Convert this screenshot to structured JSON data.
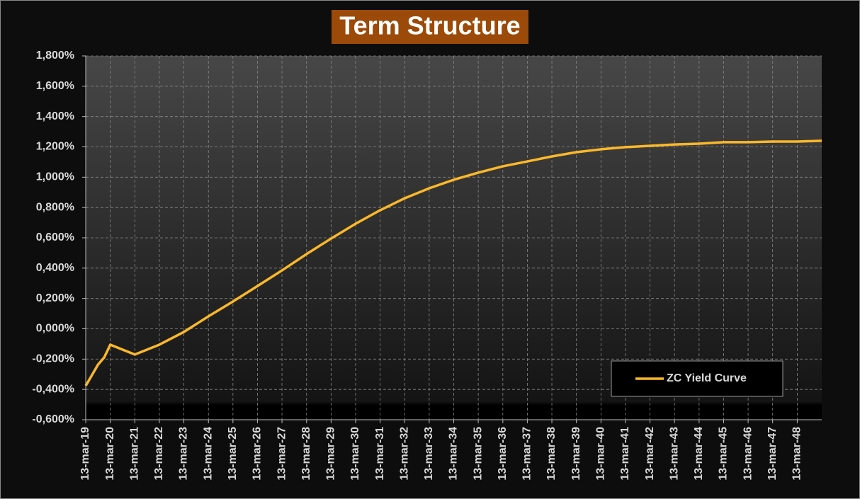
{
  "chart_data": {
    "type": "line",
    "title": "Term Structure",
    "x": [
      "2019-03-13",
      "2019-04-13",
      "2019-09-13",
      "2019-12-13",
      "2020-03-13",
      "2021-03-13",
      "2022-03-13",
      "2023-03-13",
      "2024-03-13",
      "2025-03-13",
      "2026-03-13",
      "2027-03-13",
      "2028-03-13",
      "2029-03-13",
      "2030-03-13",
      "2031-03-13",
      "2032-03-13",
      "2033-03-13",
      "2034-03-13",
      "2035-03-13",
      "2036-03-13",
      "2037-03-13",
      "2038-03-13",
      "2039-03-13",
      "2040-03-13",
      "2041-03-13",
      "2042-03-13",
      "2043-03-13",
      "2044-03-13",
      "2045-03-13",
      "2046-03-13",
      "2047-03-13",
      "2048-03-13",
      "2049-03-13"
    ],
    "series": [
      {
        "name": "ZC Yield Curve",
        "color": "#fbb829",
        "values": [
          -0.376,
          -0.353,
          -0.236,
          -0.189,
          -0.105,
          -0.17,
          -0.105,
          -0.021,
          0.082,
          0.18,
          0.282,
          0.385,
          0.493,
          0.595,
          0.693,
          0.782,
          0.861,
          0.927,
          0.983,
          1.03,
          1.072,
          1.104,
          1.137,
          1.165,
          1.184,
          1.198,
          1.207,
          1.216,
          1.221,
          1.231,
          1.231,
          1.235,
          1.235,
          1.24
        ]
      }
    ],
    "xlim": [
      "2019-03-13",
      "2049-03-13"
    ],
    "xticks": [
      {
        "value": "2019-03-13",
        "label": "13-mar-19"
      },
      {
        "value": "2020-03-13",
        "label": "13-mar-20"
      },
      {
        "value": "2021-03-13",
        "label": "13-mar-21"
      },
      {
        "value": "2022-03-13",
        "label": "13-mar-22"
      },
      {
        "value": "2023-03-13",
        "label": "13-mar-23"
      },
      {
        "value": "2024-03-13",
        "label": "13-mar-24"
      },
      {
        "value": "2025-03-13",
        "label": "13-mar-25"
      },
      {
        "value": "2026-03-13",
        "label": "13-mar-26"
      },
      {
        "value": "2027-03-13",
        "label": "13-mar-27"
      },
      {
        "value": "2028-03-13",
        "label": "13-mar-28"
      },
      {
        "value": "2029-03-13",
        "label": "13-mar-29"
      },
      {
        "value": "2030-03-13",
        "label": "13-mar-30"
      },
      {
        "value": "2031-03-13",
        "label": "13-mar-31"
      },
      {
        "value": "2032-03-13",
        "label": "13-mar-32"
      },
      {
        "value": "2033-03-13",
        "label": "13-mar-33"
      },
      {
        "value": "2034-03-13",
        "label": "13-mar-34"
      },
      {
        "value": "2035-03-13",
        "label": "13-mar-35"
      },
      {
        "value": "2036-03-13",
        "label": "13-mar-36"
      },
      {
        "value": "2037-03-13",
        "label": "13-mar-37"
      },
      {
        "value": "2038-03-13",
        "label": "13-mar-38"
      },
      {
        "value": "2039-03-13",
        "label": "13-mar-39"
      },
      {
        "value": "2040-03-13",
        "label": "13-mar-40"
      },
      {
        "value": "2041-03-13",
        "label": "13-mar-41"
      },
      {
        "value": "2042-03-13",
        "label": "13-mar-42"
      },
      {
        "value": "2043-03-13",
        "label": "13-mar-43"
      },
      {
        "value": "2044-03-13",
        "label": "13-mar-44"
      },
      {
        "value": "2045-03-13",
        "label": "13-mar-45"
      },
      {
        "value": "2046-03-13",
        "label": "13-mar-46"
      },
      {
        "value": "2047-03-13",
        "label": "13-mar-47"
      },
      {
        "value": "2048-03-13",
        "label": "13-mar-48"
      }
    ],
    "ylim": [
      -0.6,
      1.8
    ],
    "yticks": [
      {
        "value": -0.6,
        "label": "-0,600%"
      },
      {
        "value": -0.4,
        "label": "-0,400%"
      },
      {
        "value": -0.2,
        "label": "-0,200%"
      },
      {
        "value": 0,
        "label": "0,000%"
      },
      {
        "value": 0.2,
        "label": "0,200%"
      },
      {
        "value": 0.4,
        "label": "0,400%"
      },
      {
        "value": 0.6,
        "label": "0,600%"
      },
      {
        "value": 0.8,
        "label": "0,800%"
      },
      {
        "value": 1.0,
        "label": "1,000%"
      },
      {
        "value": 1.2,
        "label": "1,200%"
      },
      {
        "value": 1.4,
        "label": "1,400%"
      },
      {
        "value": 1.6,
        "label": "1,600%"
      },
      {
        "value": 1.8,
        "label": "1,800%"
      }
    ],
    "grid": true,
    "legend": "bottom-right"
  }
}
